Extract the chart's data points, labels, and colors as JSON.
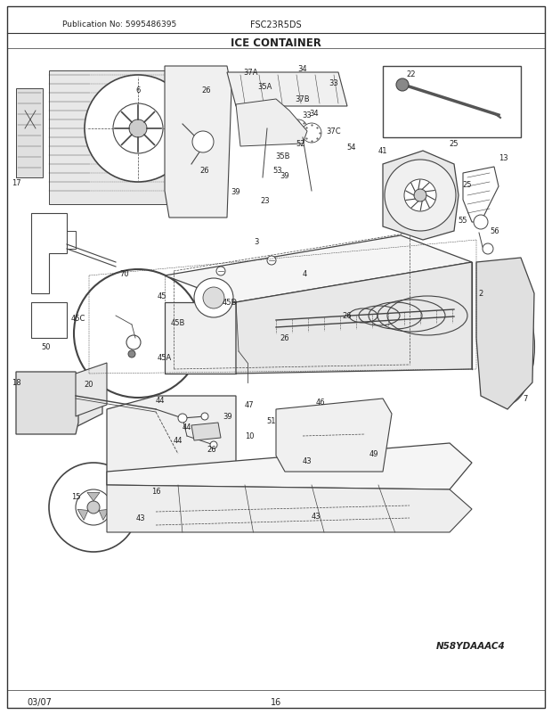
{
  "title": "ICE CONTAINER",
  "header_left": "Publication No: 5995486395",
  "header_center": "FSC23R5DS",
  "footer_left": "03/07",
  "footer_center": "16",
  "footer_right": "N58YDAAAC4",
  "bg_color": "#ffffff",
  "border_color": "#333333",
  "text_color": "#222222",
  "diagram_color": "#444444",
  "figsize": [
    6.2,
    8.03
  ],
  "dpi": 100
}
